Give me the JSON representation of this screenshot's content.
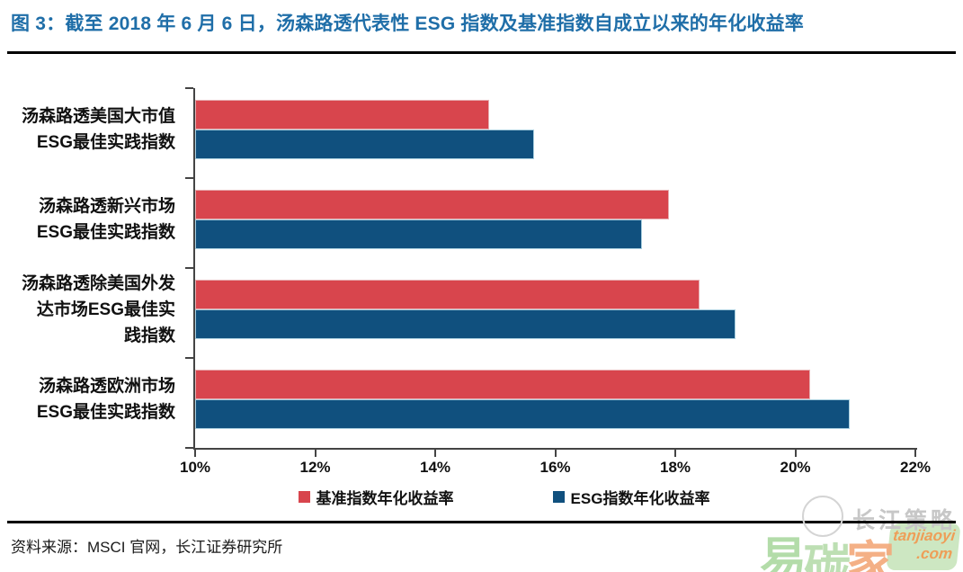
{
  "title": "图 3：截至 2018 年 6 月 6 日，汤森路透代表性 ESG 指数及基准指数自成立以来的年化收益率",
  "colors": {
    "title_blue": "#1f6ea8",
    "benchmark_red": "#d8454d",
    "esg_blue": "#10507e",
    "axis": "#444444"
  },
  "chart_data": {
    "type": "bar",
    "orientation": "horizontal",
    "title": "截至 2018 年 6 月 6 日，汤森路透代表性 ESG 指数及基准指数自成立以来的年化收益率",
    "categories": [
      "汤森路透美国大市值ESG最佳实践指数",
      "汤森路透新兴市场ESG最佳实践指数",
      "汤森路透除美国外发达市场ESG最佳实践指数",
      "汤森路透欧洲市场ESG最佳实践指数"
    ],
    "label_lines": [
      [
        "汤森路透美国大市值",
        "ESG最佳实践指数"
      ],
      [
        "汤森路透新兴市场",
        "ESG最佳实践指数"
      ],
      [
        "汤森路透除美国外发",
        "达市场ESG最佳实",
        "践指数"
      ],
      [
        "汤森路透欧洲市场",
        "ESG最佳实践指数"
      ]
    ],
    "series": [
      {
        "name": "基准指数年化收益率",
        "color": "#d8454d",
        "values": [
          14.9,
          17.9,
          18.4,
          20.25
        ]
      },
      {
        "name": "ESG指数年化收益率",
        "color": "#10507e",
        "values": [
          15.65,
          17.45,
          19.0,
          20.9
        ]
      }
    ],
    "xlim": [
      10,
      22
    ],
    "x_ticks": [
      "10%",
      "12%",
      "14%",
      "16%",
      "18%",
      "20%",
      "22%"
    ],
    "x_tick_values": [
      10,
      12,
      14,
      16,
      18,
      20,
      22
    ],
    "value_unit": "%",
    "grid": false,
    "legend_position": "bottom"
  },
  "source": {
    "prefix": "资料来源：",
    "text": "MSCI 官网，长江证券研究所"
  },
  "watermark": {
    "publisher": "长江策略",
    "brand_characters": [
      "易",
      "碳",
      "家"
    ],
    "brand_url_line1": "tanjiaoyi",
    "brand_url_line2": ".com"
  }
}
